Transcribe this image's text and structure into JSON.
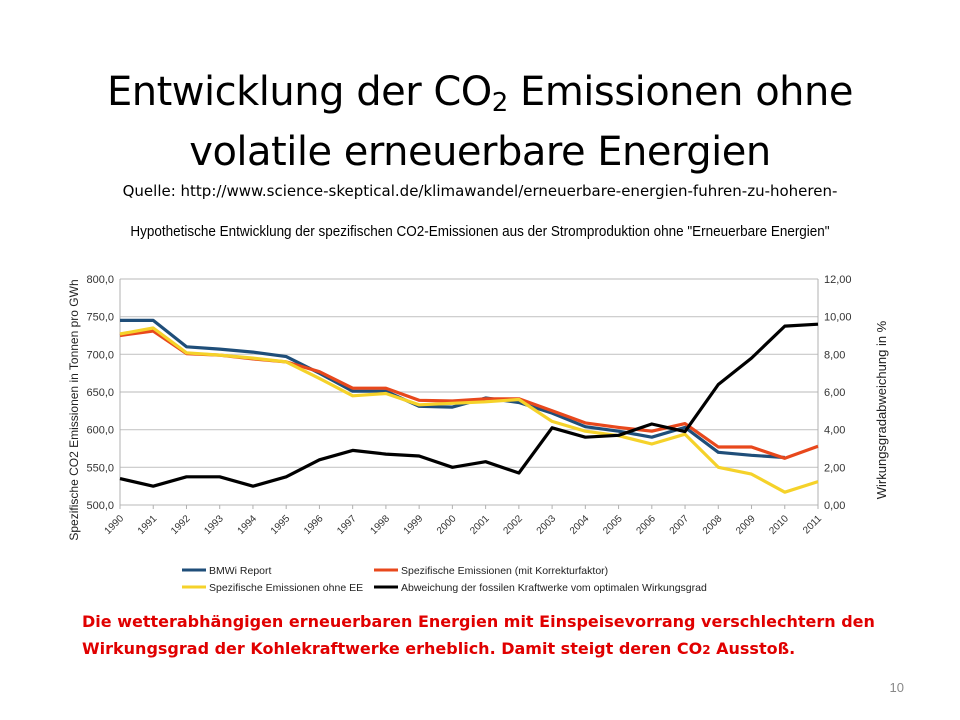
{
  "slide": {
    "title_part1": "Entwicklung der CO",
    "title_sub": "2",
    "title_part2": " Emissionen ohne",
    "title_line2": "volatile erneuerbare Energien",
    "source": "Quelle: http://www.science-skeptical.de/klimawandel/erneuerbare-energien-fuhren-zu-hoheren-",
    "note_part1": "Die wetterabhängigen erneuerbaren Energien mit Einspeisevorrang verschlechtern den Wirkungsgrad der Kohlekraftwerke erheblich. Damit steigt deren CO",
    "note_sub": "2",
    "note_part2": " Ausstoß.",
    "page_number": "10"
  },
  "chart_data": {
    "type": "line",
    "title": "Hypothetische Entwicklung der spezifischen CO2-Emissionen aus der Stromproduktion ohne \"Erneuerbare Energien\"",
    "ylabel": "Spezifische CO2 Emissionen in Tonnen pro GWh",
    "y2label": "Wirkungsgradabweichung in %",
    "ylim": [
      500,
      800
    ],
    "y2lim": [
      0,
      12
    ],
    "yticks": [
      "500,0",
      "550,0",
      "600,0",
      "650,0",
      "700,0",
      "750,0",
      "800,0"
    ],
    "y2ticks": [
      "0,00",
      "2,00",
      "4,00",
      "6,00",
      "8,00",
      "10,00",
      "12,00"
    ],
    "grid": true,
    "legend_placement": "bottom",
    "categories": [
      "1990",
      "1991",
      "1992",
      "1993",
      "1994",
      "1995",
      "1996",
      "1997",
      "1998",
      "1999",
      "2000",
      "2001",
      "2002",
      "2003",
      "2004",
      "2005",
      "2006",
      "2007",
      "2008",
      "2009",
      "2010",
      "2011"
    ],
    "series": [
      {
        "name": "BMWi Report",
        "axis": "left",
        "color": "#1f4e79",
        "values": [
          745,
          745,
          710,
          707,
          703,
          697,
          675,
          651,
          651,
          631,
          630,
          642,
          636,
          622,
          604,
          598,
          590,
          603,
          570,
          566,
          563,
          null
        ]
      },
      {
        "name": "Spezifische Emissionen (mit Korrekturfaktor)",
        "axis": "left",
        "color": "#e8481c",
        "values": [
          725,
          731,
          701,
          699,
          694,
          690,
          677,
          655,
          655,
          639,
          638,
          641,
          641,
          625,
          609,
          603,
          598,
          608,
          577,
          577,
          562,
          578
        ]
      },
      {
        "name": "Spezifische Emissionen ohne EE",
        "axis": "left",
        "color": "#f5d22a",
        "values": [
          727,
          735,
          702,
          699,
          695,
          690,
          668,
          645,
          648,
          633,
          635,
          637,
          640,
          611,
          598,
          592,
          581,
          594,
          550,
          541,
          517,
          531
        ]
      },
      {
        "name": "Abweichung der fossilen Kraftwerke vom optimalen Wirkungsgrad",
        "axis": "right",
        "color": "#000000",
        "values": [
          1.4,
          1.0,
          1.5,
          1.5,
          1.0,
          1.5,
          2.4,
          2.9,
          2.7,
          2.6,
          2.0,
          2.3,
          1.7,
          4.1,
          3.6,
          3.7,
          4.3,
          3.9,
          6.4,
          7.8,
          9.5,
          9.6
        ]
      }
    ]
  }
}
